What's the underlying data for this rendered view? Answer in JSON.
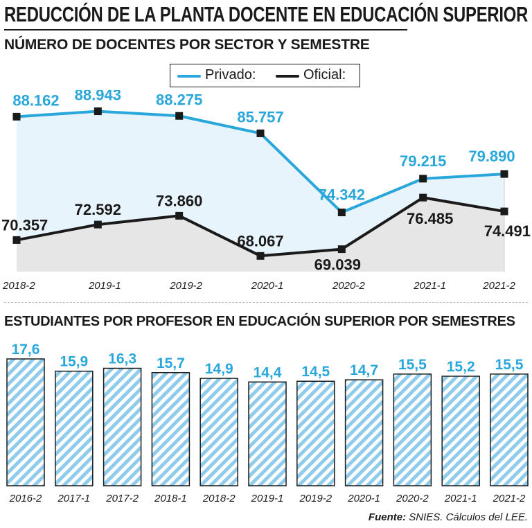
{
  "title": "REDUCCIÓN DE LA PLANTA DOCENTE EN EDUCACIÓN SUPERIOR",
  "source": {
    "label": "Fuente:",
    "text": "SNIES. Cálculos del LEE."
  },
  "colors": {
    "privado": "#29a7db",
    "oficial": "#1a1a1a",
    "privado_fill": "#e8f4fb",
    "oficial_fill": "#e6e6e6"
  },
  "chart_data": [
    {
      "type": "line",
      "title": "NÚMERO DE DOCENTES POR SECTOR Y SEMESTRE",
      "x": [
        "2018-2",
        "2019-1",
        "2019-2",
        "2020-1",
        "2020-2",
        "2021-1",
        "2021-2"
      ],
      "series": [
        {
          "name": "Privado:",
          "values": [
            88162,
            88943,
            88275,
            85757,
            74342,
            79215,
            79890
          ],
          "labels": [
            "88.162",
            "88.943",
            "88.275",
            "85.757",
            "74.342",
            "79.215",
            "79.890"
          ]
        },
        {
          "name": "Oficial:",
          "values": [
            70357,
            72592,
            73860,
            68067,
            69039,
            76485,
            74491
          ],
          "labels": [
            "70.357",
            "72.592",
            "73.860",
            "68.067",
            "69.039",
            "76.485",
            "74.491"
          ]
        }
      ],
      "ylim": [
        62000,
        92000
      ],
      "legend": "top-center",
      "grid": false
    },
    {
      "type": "bar",
      "title": "ESTUDIANTES POR PROFESOR EN EDUCACIÓN SUPERIOR POR SEMESTRES",
      "categories": [
        "2016-2",
        "2017-1",
        "2017-2",
        "2018-1",
        "2018-2",
        "2019-1",
        "2019-2",
        "2020-1",
        "2020-2",
        "2021-1",
        "2021-2"
      ],
      "values": [
        17.6,
        15.9,
        16.3,
        15.7,
        14.9,
        14.4,
        14.5,
        14.7,
        15.5,
        15.2,
        15.5
      ],
      "labels": [
        "17,6",
        "15,9",
        "16,3",
        "15,7",
        "14,9",
        "14,4",
        "14,5",
        "14,7",
        "15,5",
        "15,2",
        "15,5"
      ],
      "ylim": [
        0,
        17.6
      ],
      "grid": false
    }
  ]
}
